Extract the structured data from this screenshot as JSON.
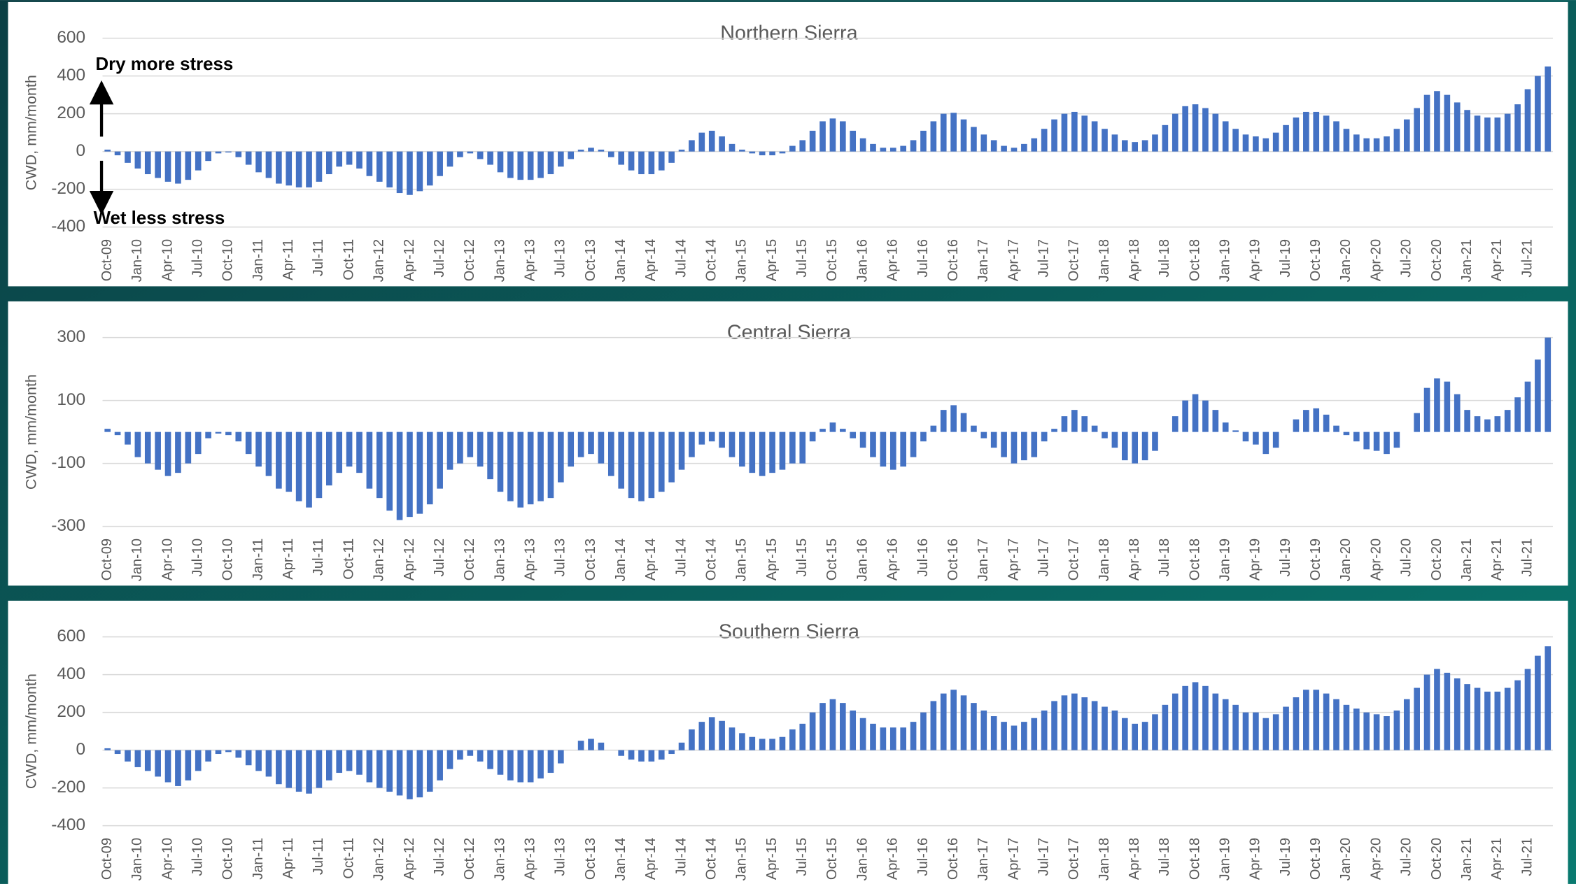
{
  "chart_data": [
    {
      "type": "bar",
      "title": "Northern Sierra",
      "ylabel": "CWD, mm/month",
      "color": "#4472c4",
      "grid": true,
      "annotations": [
        "Dry more stress",
        "Wet less stress"
      ],
      "ylim": [
        -400,
        600
      ],
      "yticks": [
        -400,
        -200,
        0,
        200,
        400,
        600
      ],
      "categories": [
        "Oct-09",
        null,
        null,
        "Jan-10",
        null,
        null,
        "Apr-10",
        null,
        null,
        "Jul-10",
        null,
        null,
        "Oct-10",
        null,
        null,
        "Jan-11",
        null,
        null,
        "Apr-11",
        null,
        null,
        "Jul-11",
        null,
        null,
        "Oct-11",
        null,
        null,
        "Jan-12",
        null,
        null,
        "Apr-12",
        null,
        null,
        "Jul-12",
        null,
        null,
        "Oct-12",
        null,
        null,
        "Jan-13",
        null,
        null,
        "Apr-13",
        null,
        null,
        "Jul-13",
        null,
        null,
        "Oct-13",
        null,
        null,
        "Jan-14",
        null,
        null,
        "Apr-14",
        null,
        null,
        "Jul-14",
        null,
        null,
        "Oct-14",
        null,
        null,
        "Jan-15",
        null,
        null,
        "Apr-15",
        null,
        null,
        "Jul-15",
        null,
        null,
        "Oct-15",
        null,
        null,
        "Jan-16",
        null,
        null,
        "Apr-16",
        null,
        null,
        "Jul-16",
        null,
        null,
        "Oct-16",
        null,
        null,
        "Jan-17",
        null,
        null,
        "Apr-17",
        null,
        null,
        "Jul-17",
        null,
        null,
        "Oct-17",
        null,
        null,
        "Jan-18",
        null,
        null,
        "Apr-18",
        null,
        null,
        "Jul-18",
        null,
        null,
        "Oct-18",
        null,
        null,
        "Jan-19",
        null,
        null,
        "Apr-19",
        null,
        null,
        "Jul-19",
        null,
        null,
        "Oct-19",
        null,
        null,
        "Jan-20",
        null,
        null,
        "Apr-20",
        null,
        null,
        "Jul-20",
        null,
        null,
        "Oct-20",
        null,
        null,
        "Jan-21",
        null,
        null,
        "Apr-21",
        null,
        null,
        "Jul-21",
        null,
        null
      ],
      "values": [
        10,
        -20,
        -60,
        -90,
        -120,
        -140,
        -160,
        -170,
        -150,
        -100,
        -50,
        -10,
        -5,
        -30,
        -70,
        -110,
        -140,
        -170,
        -180,
        -190,
        -190,
        -160,
        -120,
        -80,
        -70,
        -90,
        -130,
        -160,
        -190,
        -220,
        -230,
        -210,
        -180,
        -130,
        -80,
        -30,
        -10,
        -40,
        -70,
        -110,
        -140,
        -150,
        -150,
        -140,
        -120,
        -80,
        -40,
        10,
        20,
        10,
        -30,
        -70,
        -100,
        -120,
        -120,
        -100,
        -60,
        10,
        60,
        100,
        110,
        80,
        40,
        10,
        -10,
        -20,
        -20,
        -10,
        30,
        60,
        110,
        160,
        175,
        160,
        110,
        70,
        40,
        20,
        20,
        30,
        60,
        110,
        160,
        200,
        205,
        170,
        130,
        90,
        60,
        30,
        20,
        40,
        70,
        120,
        170,
        200,
        210,
        190,
        160,
        120,
        90,
        60,
        50,
        60,
        90,
        140,
        200,
        240,
        250,
        230,
        200,
        160,
        120,
        90,
        80,
        70,
        100,
        140,
        180,
        210,
        210,
        190,
        160,
        120,
        90,
        70,
        70,
        80,
        120,
        170,
        230,
        300,
        320,
        300,
        260,
        220,
        190,
        180,
        180,
        200,
        250,
        330,
        400,
        450
      ]
    },
    {
      "type": "bar",
      "title": "Central Sierra",
      "ylabel": "CWD, mm/month",
      "color": "#4472c4",
      "grid": true,
      "ylim": [
        -300,
        300
      ],
      "yticks": [
        -300,
        -100,
        100,
        300
      ],
      "categories": [
        "Oct-09",
        null,
        null,
        "Jan-10",
        null,
        null,
        "Apr-10",
        null,
        null,
        "Jul-10",
        null,
        null,
        "Oct-10",
        null,
        null,
        "Jan-11",
        null,
        null,
        "Apr-11",
        null,
        null,
        "Jul-11",
        null,
        null,
        "Oct-11",
        null,
        null,
        "Jan-12",
        null,
        null,
        "Apr-12",
        null,
        null,
        "Jul-12",
        null,
        null,
        "Oct-12",
        null,
        null,
        "Jan-13",
        null,
        null,
        "Apr-13",
        null,
        null,
        "Jul-13",
        null,
        null,
        "Oct-13",
        null,
        null,
        "Jan-14",
        null,
        null,
        "Apr-14",
        null,
        null,
        "Jul-14",
        null,
        null,
        "Oct-14",
        null,
        null,
        "Jan-15",
        null,
        null,
        "Apr-15",
        null,
        null,
        "Jul-15",
        null,
        null,
        "Oct-15",
        null,
        null,
        "Jan-16",
        null,
        null,
        "Apr-16",
        null,
        null,
        "Jul-16",
        null,
        null,
        "Oct-16",
        null,
        null,
        "Jan-17",
        null,
        null,
        "Apr-17",
        null,
        null,
        "Jul-17",
        null,
        null,
        "Oct-17",
        null,
        null,
        "Jan-18",
        null,
        null,
        "Apr-18",
        null,
        null,
        "Jul-18",
        null,
        null,
        "Oct-18",
        null,
        null,
        "Jan-19",
        null,
        null,
        "Apr-19",
        null,
        null,
        "Jul-19",
        null,
        null,
        "Oct-19",
        null,
        null,
        "Jan-20",
        null,
        null,
        "Apr-20",
        null,
        null,
        "Jul-20",
        null,
        null,
        "Oct-20",
        null,
        null,
        "Jan-21",
        null,
        null,
        "Apr-21",
        null,
        null,
        "Jul-21",
        null,
        null
      ],
      "values": [
        10,
        -10,
        -40,
        -80,
        -100,
        -120,
        -140,
        -130,
        -100,
        -70,
        -20,
        -5,
        -10,
        -30,
        -70,
        -110,
        -140,
        -180,
        -190,
        -220,
        -240,
        -210,
        -170,
        -130,
        -110,
        -130,
        -180,
        -210,
        -250,
        -280,
        -270,
        -260,
        -230,
        -180,
        -120,
        -100,
        -80,
        -110,
        -150,
        -190,
        -220,
        -240,
        -230,
        -220,
        -210,
        -160,
        -110,
        -80,
        -70,
        -100,
        -140,
        -180,
        -210,
        -220,
        -210,
        -190,
        -160,
        -120,
        -80,
        -40,
        -30,
        -50,
        -80,
        -110,
        -130,
        -140,
        -130,
        -120,
        -100,
        -100,
        -30,
        10,
        30,
        10,
        -20,
        -50,
        -80,
        -110,
        -120,
        -110,
        -80,
        -30,
        20,
        70,
        85,
        60,
        20,
        -20,
        -50,
        -80,
        -100,
        -90,
        -80,
        -30,
        10,
        50,
        70,
        50,
        20,
        -20,
        -50,
        -90,
        -100,
        -90,
        -60,
        0,
        50,
        100,
        120,
        100,
        70,
        30,
        5,
        -30,
        -40,
        -70,
        -50,
        0,
        40,
        70,
        75,
        55,
        20,
        -10,
        -30,
        -55,
        -60,
        -70,
        -50,
        0,
        60,
        140,
        170,
        160,
        120,
        70,
        50,
        40,
        50,
        70,
        110,
        160,
        230,
        300
      ]
    },
    {
      "type": "bar",
      "title": "Southern Sierra",
      "ylabel": "CWD, mm/month",
      "color": "#4472c4",
      "grid": true,
      "ylim": [
        -400,
        600
      ],
      "yticks": [
        -400,
        -200,
        0,
        200,
        400,
        600
      ],
      "categories": [
        "Oct-09",
        null,
        null,
        "Jan-10",
        null,
        null,
        "Apr-10",
        null,
        null,
        "Jul-10",
        null,
        null,
        "Oct-10",
        null,
        null,
        "Jan-11",
        null,
        null,
        "Apr-11",
        null,
        null,
        "Jul-11",
        null,
        null,
        "Oct-11",
        null,
        null,
        "Jan-12",
        null,
        null,
        "Apr-12",
        null,
        null,
        "Jul-12",
        null,
        null,
        "Oct-12",
        null,
        null,
        "Jan-13",
        null,
        null,
        "Apr-13",
        null,
        null,
        "Jul-13",
        null,
        null,
        "Oct-13",
        null,
        null,
        "Jan-14",
        null,
        null,
        "Apr-14",
        null,
        null,
        "Jul-14",
        null,
        null,
        "Oct-14",
        null,
        null,
        "Jan-15",
        null,
        null,
        "Apr-15",
        null,
        null,
        "Jul-15",
        null,
        null,
        "Oct-15",
        null,
        null,
        "Jan-16",
        null,
        null,
        "Apr-16",
        null,
        null,
        "Jul-16",
        null,
        null,
        "Oct-16",
        null,
        null,
        "Jan-17",
        null,
        null,
        "Apr-17",
        null,
        null,
        "Jul-17",
        null,
        null,
        "Oct-17",
        null,
        null,
        "Jan-18",
        null,
        null,
        "Apr-18",
        null,
        null,
        "Jul-18",
        null,
        null,
        "Oct-18",
        null,
        null,
        "Jan-19",
        null,
        null,
        "Apr-19",
        null,
        null,
        "Jul-19",
        null,
        null,
        "Oct-19",
        null,
        null,
        "Jan-20",
        null,
        null,
        "Apr-20",
        null,
        null,
        "Jul-20",
        null,
        null,
        "Oct-20",
        null,
        null,
        "Jan-21",
        null,
        null,
        "Apr-21",
        null,
        null,
        "Jul-21",
        null,
        null
      ],
      "values": [
        10,
        -20,
        -60,
        -90,
        -110,
        -140,
        -170,
        -190,
        -160,
        -110,
        -60,
        -20,
        -10,
        -40,
        -80,
        -110,
        -140,
        -180,
        -200,
        -220,
        -230,
        -200,
        -160,
        -120,
        -110,
        -130,
        -170,
        -200,
        -220,
        -240,
        -260,
        -250,
        -220,
        -160,
        -100,
        -50,
        -30,
        -60,
        -100,
        -130,
        -160,
        -170,
        -170,
        -150,
        -120,
        -70,
        0,
        50,
        60,
        40,
        0,
        -30,
        -50,
        -60,
        -60,
        -50,
        -20,
        40,
        110,
        150,
        175,
        155,
        120,
        90,
        70,
        60,
        60,
        70,
        110,
        140,
        200,
        250,
        270,
        250,
        210,
        170,
        140,
        120,
        120,
        120,
        150,
        200,
        260,
        300,
        320,
        290,
        250,
        210,
        180,
        150,
        130,
        150,
        170,
        210,
        260,
        290,
        300,
        280,
        260,
        230,
        210,
        170,
        140,
        150,
        190,
        240,
        300,
        340,
        360,
        340,
        300,
        270,
        240,
        200,
        200,
        170,
        190,
        230,
        280,
        320,
        320,
        300,
        270,
        240,
        220,
        200,
        190,
        180,
        210,
        270,
        330,
        400,
        430,
        410,
        380,
        350,
        330,
        310,
        310,
        330,
        370,
        430,
        500,
        550
      ]
    }
  ]
}
